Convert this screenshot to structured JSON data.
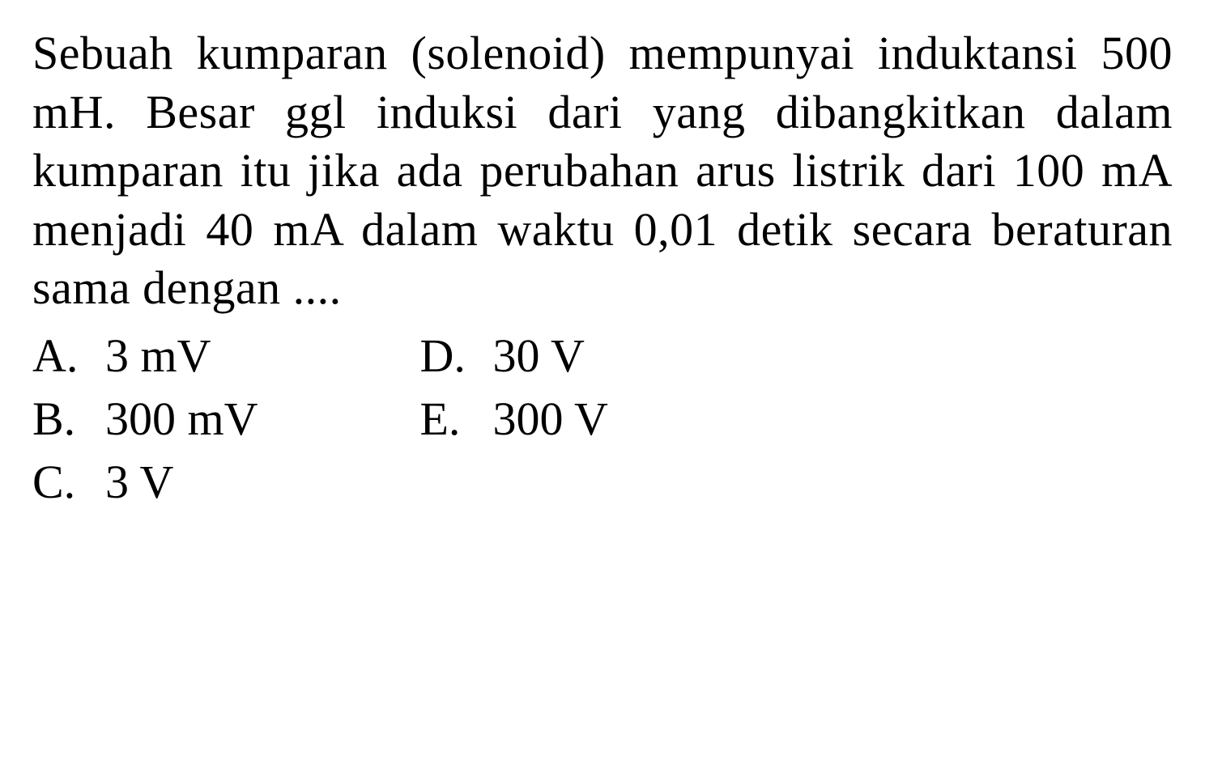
{
  "question": {
    "text": "Sebuah kumparan (solenoid) mempunyai induktansi 500 mH. Besar ggl induksi dari yang dibangkitkan dalam kumparan itu jika ada perubahan arus listrik dari 100 mA menjadi 40 mA dalam waktu 0,01 detik secara beraturan sama dengan ...."
  },
  "options": {
    "left": [
      {
        "letter": "A.",
        "value": "3 mV"
      },
      {
        "letter": "B.",
        "value": "300 mV"
      },
      {
        "letter": "C.",
        "value": "3 V"
      }
    ],
    "right": [
      {
        "letter": "D.",
        "value": "30 V"
      },
      {
        "letter": "E.",
        "value": "300 V"
      }
    ]
  },
  "styling": {
    "background_color": "#ffffff",
    "text_color": "#000000",
    "font_family": "Times New Roman",
    "question_fontsize": 58,
    "option_fontsize": 58,
    "line_height": 1.25
  }
}
